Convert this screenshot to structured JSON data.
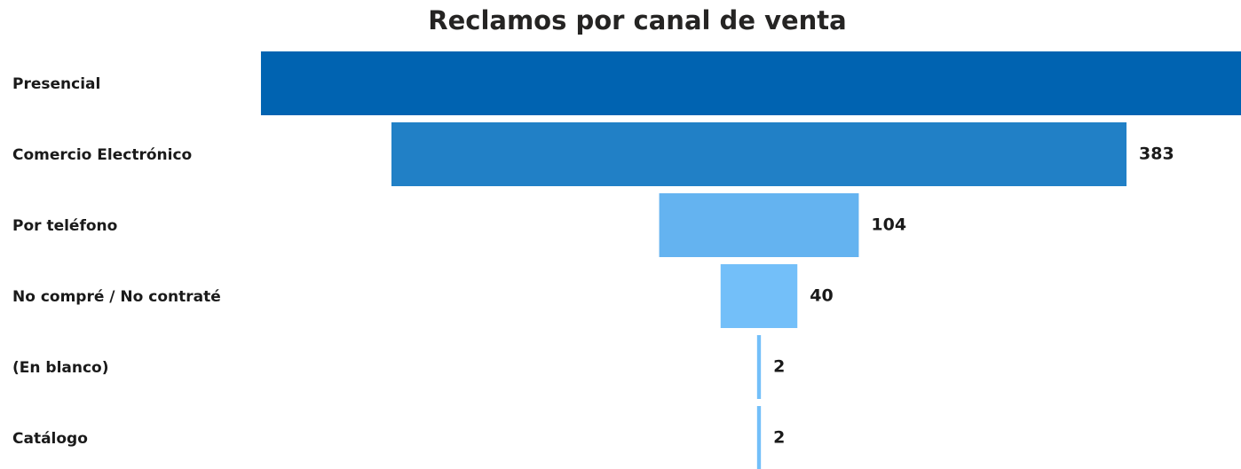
{
  "chart_data": {
    "type": "funnel",
    "title": "Reclamos por canal de venta",
    "categories": [
      "Presencial",
      "Comercio Electrónico",
      "Por teléfono",
      "No compré / No contraté",
      "(En blanco)",
      "Catálogo"
    ],
    "values": [
      519,
      383,
      104,
      40,
      2,
      2
    ],
    "colors": [
      "#0063b1",
      "#2180c6",
      "#64b3f0",
      "#73bff9",
      "#73bff9",
      "#73bff9"
    ]
  }
}
